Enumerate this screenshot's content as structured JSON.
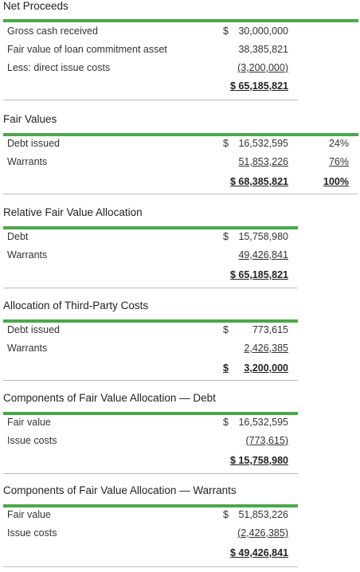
{
  "net_proceeds": {
    "title": "Net Proceeds",
    "rows": [
      {
        "label": "Gross cash received",
        "currency": "$",
        "amount": "30,000,000"
      },
      {
        "label": "Fair value of loan commitment asset",
        "currency": "",
        "amount": "38,385,821"
      },
      {
        "label": "Less: direct issue costs",
        "currency": "",
        "amount": "(3,200,000)"
      }
    ],
    "total": "$ 65,185,821"
  },
  "fair_values": {
    "title": "Fair Values",
    "rows": [
      {
        "label": "Debt issued",
        "currency": "$",
        "amount": "16,532,595",
        "pct": "24%"
      },
      {
        "label": "Warrants",
        "currency": "",
        "amount": "51,853,226",
        "pct": "76%"
      }
    ],
    "total": "$ 68,385,821",
    "total_pct": "100%"
  },
  "relative_allocation": {
    "title": "Relative Fair Value Allocation",
    "rows": [
      {
        "label": "Debt",
        "currency": "$",
        "amount": "15,758,980"
      },
      {
        "label": "Warrants",
        "currency": "",
        "amount": "49,426,841"
      }
    ],
    "total": "$ 65,185,821"
  },
  "third_party_costs": {
    "title": "Allocation of Third-Party Costs",
    "rows": [
      {
        "label": "Debt issued",
        "currency": "$",
        "amount": "773,615"
      },
      {
        "label": "Warrants",
        "currency": "",
        "amount": "2,426,385"
      }
    ],
    "total_currency": "$",
    "total_amount": "3,200,000"
  },
  "components_debt": {
    "title": "Components of Fair Value Allocation — Debt",
    "rows": [
      {
        "label": "Fair value",
        "currency": "$",
        "amount": "16,532,595"
      },
      {
        "label": "Issue costs",
        "currency": "",
        "amount": "(773,615)"
      }
    ],
    "total": "$ 15,758,980"
  },
  "components_warrants": {
    "title": "Components of Fair Value Allocation — Warrants",
    "rows": [
      {
        "label": "Fair value",
        "currency": "$",
        "amount": "51,853,226"
      },
      {
        "label": "Issue costs",
        "currency": "",
        "amount": "(2,426,385)"
      }
    ],
    "total": "$ 49,426,841"
  },
  "colors": {
    "accent_green": "#4aa84a",
    "rule_gray": "#bbbbbb"
  }
}
